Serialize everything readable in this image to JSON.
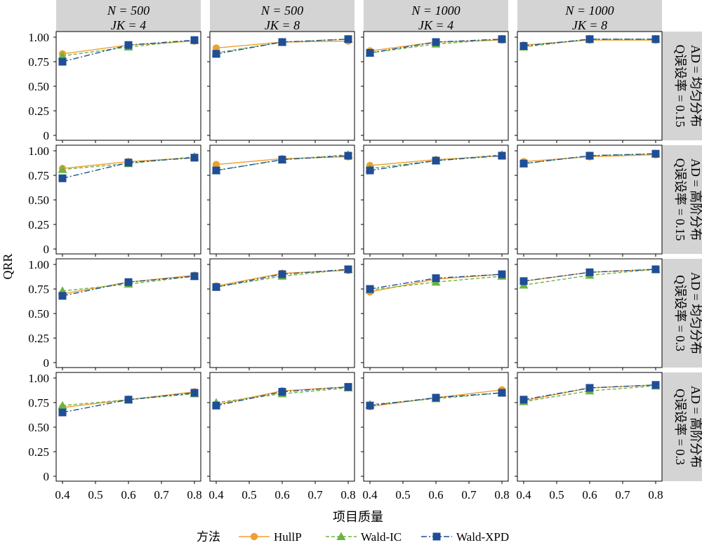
{
  "chart_data": {
    "type": "line",
    "layout": "facet-grid",
    "facet_grid": {
      "columns": [
        {
          "n_label": "N = 500",
          "jk_label": "JK = 4"
        },
        {
          "n_label": "N = 500",
          "jk_label": "JK = 8"
        },
        {
          "n_label": "N = 1000",
          "jk_label": "JK = 4"
        },
        {
          "n_label": "N = 1000",
          "jk_label": "JK = 8"
        }
      ],
      "rows": [
        {
          "line1": "Q误设率 = 0.15",
          "line2": "AD = 均匀分布"
        },
        {
          "line1": "Q误设率 = 0.15",
          "line2": "AD = 高阶分布"
        },
        {
          "line1": "Q误设率 = 0.3",
          "line2": "AD = 均匀分布"
        },
        {
          "line1": "Q误设率 = 0.3",
          "line2": "AD = 高阶分布"
        }
      ]
    },
    "xlabel": "项目质量",
    "ylabel": "QRR",
    "x": [
      0.4,
      0.6,
      0.8
    ],
    "xlim": [
      0.4,
      0.8
    ],
    "ylim": [
      0,
      1.0
    ],
    "xticks": [
      0.4,
      0.5,
      0.6,
      0.7,
      0.8
    ],
    "yticks": [
      0,
      0.25,
      0.5,
      0.75,
      1.0
    ],
    "xtick_labels": [
      "0.4",
      "0.5",
      "0.6",
      "0.7",
      "0.8"
    ],
    "ytick_labels": [
      "0",
      "0.25",
      "0.50",
      "0.75",
      "1.00"
    ],
    "grid": false,
    "legend": {
      "title": "方法",
      "placement": "bottom-center",
      "entries": [
        "HullP",
        "Wald-IC",
        "Wald-XPD"
      ]
    },
    "series_styles": [
      {
        "name": "HullP",
        "color": "#F0A030",
        "marker": "circle",
        "dash": "solid"
      },
      {
        "name": "Wald-IC",
        "color": "#6DB33F",
        "marker": "triangle",
        "dash": "dashed"
      },
      {
        "name": "Wald-XPD",
        "color": "#1F4E96",
        "marker": "square",
        "dash": "dashdot"
      }
    ],
    "panels": [
      {
        "row": 0,
        "col": 0,
        "series": [
          {
            "name": "HullP",
            "values": [
              0.83,
              0.92,
              0.96
            ]
          },
          {
            "name": "Wald-IC",
            "values": [
              0.81,
              0.9,
              0.97
            ]
          },
          {
            "name": "Wald-XPD",
            "values": [
              0.75,
              0.92,
              0.97
            ]
          }
        ]
      },
      {
        "row": 0,
        "col": 1,
        "series": [
          {
            "name": "HullP",
            "values": [
              0.89,
              0.95,
              0.96
            ]
          },
          {
            "name": "Wald-IC",
            "values": [
              0.84,
              0.95,
              0.98
            ]
          },
          {
            "name": "Wald-XPD",
            "values": [
              0.83,
              0.95,
              0.98
            ]
          }
        ]
      },
      {
        "row": 0,
        "col": 2,
        "series": [
          {
            "name": "HullP",
            "values": [
              0.86,
              0.95,
              0.97
            ]
          },
          {
            "name": "Wald-IC",
            "values": [
              0.84,
              0.93,
              0.98
            ]
          },
          {
            "name": "Wald-XPD",
            "values": [
              0.84,
              0.95,
              0.98
            ]
          }
        ]
      },
      {
        "row": 0,
        "col": 3,
        "series": [
          {
            "name": "HullP",
            "values": [
              0.92,
              0.97,
              0.97
            ]
          },
          {
            "name": "Wald-IC",
            "values": [
              0.9,
              0.98,
              0.98
            ]
          },
          {
            "name": "Wald-XPD",
            "values": [
              0.91,
              0.98,
              0.98
            ]
          }
        ]
      },
      {
        "row": 1,
        "col": 0,
        "series": [
          {
            "name": "HullP",
            "values": [
              0.82,
              0.89,
              0.93
            ]
          },
          {
            "name": "Wald-IC",
            "values": [
              0.81,
              0.87,
              0.94
            ]
          },
          {
            "name": "Wald-XPD",
            "values": [
              0.72,
              0.88,
              0.93
            ]
          }
        ]
      },
      {
        "row": 1,
        "col": 1,
        "series": [
          {
            "name": "HullP",
            "values": [
              0.86,
              0.92,
              0.94
            ]
          },
          {
            "name": "Wald-IC",
            "values": [
              0.8,
              0.91,
              0.96
            ]
          },
          {
            "name": "Wald-XPD",
            "values": [
              0.8,
              0.91,
              0.95
            ]
          }
        ]
      },
      {
        "row": 1,
        "col": 2,
        "series": [
          {
            "name": "HullP",
            "values": [
              0.85,
              0.91,
              0.95
            ]
          },
          {
            "name": "Wald-IC",
            "values": [
              0.82,
              0.9,
              0.96
            ]
          },
          {
            "name": "Wald-XPD",
            "values": [
              0.8,
              0.9,
              0.95
            ]
          }
        ]
      },
      {
        "row": 1,
        "col": 3,
        "series": [
          {
            "name": "HullP",
            "values": [
              0.89,
              0.94,
              0.96
            ]
          },
          {
            "name": "Wald-IC",
            "values": [
              0.87,
              0.95,
              0.97
            ]
          },
          {
            "name": "Wald-XPD",
            "values": [
              0.87,
              0.95,
              0.97
            ]
          }
        ]
      },
      {
        "row": 2,
        "col": 0,
        "series": [
          {
            "name": "HullP",
            "values": [
              0.7,
              0.82,
              0.89
            ]
          },
          {
            "name": "Wald-IC",
            "values": [
              0.73,
              0.8,
              0.88
            ]
          },
          {
            "name": "Wald-XPD",
            "values": [
              0.68,
              0.82,
              0.88
            ]
          }
        ]
      },
      {
        "row": 2,
        "col": 1,
        "series": [
          {
            "name": "HullP",
            "values": [
              0.78,
              0.91,
              0.94
            ]
          },
          {
            "name": "Wald-IC",
            "values": [
              0.77,
              0.88,
              0.95
            ]
          },
          {
            "name": "Wald-XPD",
            "values": [
              0.77,
              0.9,
              0.95
            ]
          }
        ]
      },
      {
        "row": 2,
        "col": 2,
        "series": [
          {
            "name": "HullP",
            "values": [
              0.72,
              0.85,
              0.9
            ]
          },
          {
            "name": "Wald-IC",
            "values": [
              0.74,
              0.82,
              0.88
            ]
          },
          {
            "name": "Wald-XPD",
            "values": [
              0.75,
              0.86,
              0.9
            ]
          }
        ]
      },
      {
        "row": 2,
        "col": 3,
        "series": [
          {
            "name": "HullP",
            "values": [
              0.83,
              0.92,
              0.95
            ]
          },
          {
            "name": "Wald-IC",
            "values": [
              0.79,
              0.89,
              0.95
            ]
          },
          {
            "name": "Wald-XPD",
            "values": [
              0.83,
              0.92,
              0.95
            ]
          }
        ]
      },
      {
        "row": 3,
        "col": 0,
        "series": [
          {
            "name": "HullP",
            "values": [
              0.7,
              0.78,
              0.86
            ]
          },
          {
            "name": "Wald-IC",
            "values": [
              0.72,
              0.78,
              0.84
            ]
          },
          {
            "name": "Wald-XPD",
            "values": [
              0.65,
              0.78,
              0.85
            ]
          }
        ]
      },
      {
        "row": 3,
        "col": 1,
        "series": [
          {
            "name": "HullP",
            "values": [
              0.73,
              0.87,
              0.91
            ]
          },
          {
            "name": "Wald-IC",
            "values": [
              0.75,
              0.84,
              0.9
            ]
          },
          {
            "name": "Wald-XPD",
            "values": [
              0.72,
              0.86,
              0.91
            ]
          }
        ]
      },
      {
        "row": 3,
        "col": 2,
        "series": [
          {
            "name": "HullP",
            "values": [
              0.71,
              0.8,
              0.88
            ]
          },
          {
            "name": "Wald-IC",
            "values": [
              0.73,
              0.79,
              0.85
            ]
          },
          {
            "name": "Wald-XPD",
            "values": [
              0.72,
              0.8,
              0.85
            ]
          }
        ]
      },
      {
        "row": 3,
        "col": 3,
        "series": [
          {
            "name": "HullP",
            "values": [
              0.77,
              0.9,
              0.93
            ]
          },
          {
            "name": "Wald-IC",
            "values": [
              0.76,
              0.87,
              0.92
            ]
          },
          {
            "name": "Wald-XPD",
            "values": [
              0.78,
              0.9,
              0.93
            ]
          }
        ]
      }
    ]
  }
}
